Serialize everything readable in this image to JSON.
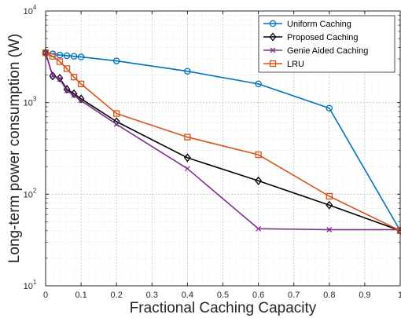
{
  "chart_data": {
    "type": "line",
    "title": "",
    "xlabel": "Fractional Caching Capacity",
    "ylabel": "Long-term power consumption (W)",
    "xlim": [
      0,
      1
    ],
    "ylim": [
      10,
      10000
    ],
    "yscale": "log",
    "grid": true,
    "legend_position": "top-right",
    "xticks": [
      0,
      0.1,
      0.2,
      0.3,
      0.4,
      0.5,
      0.6,
      0.7,
      0.8,
      0.9,
      1
    ],
    "xtick_labels": [
      "0",
      "0.1",
      "0.2",
      "0.3",
      "0.4",
      "0.5",
      "0.6",
      "0.7",
      "0.8",
      "0.9",
      "1"
    ],
    "yticks": [
      10,
      100,
      1000,
      10000
    ],
    "ytick_labels": [
      {
        "base": "10",
        "exp": "1"
      },
      {
        "base": "10",
        "exp": "2"
      },
      {
        "base": "10",
        "exp": "3"
      },
      {
        "base": "10",
        "exp": "4"
      }
    ],
    "series": [
      {
        "name": "Uniform Caching",
        "color": "#0072BD",
        "marker": "circle",
        "x": [
          0,
          0.02,
          0.04,
          0.06,
          0.08,
          0.1,
          0.2,
          0.4,
          0.6,
          0.8,
          1
        ],
        "y": [
          3500,
          3400,
          3300,
          3250,
          3200,
          3150,
          2850,
          2200,
          1600,
          870,
          40
        ]
      },
      {
        "name": "Proposed Caching",
        "color": "#000000",
        "marker": "diamond",
        "x": [
          0,
          0.02,
          0.04,
          0.06,
          0.08,
          0.1,
          0.2,
          0.4,
          0.6,
          0.8,
          1
        ],
        "y": [
          3500,
          1950,
          1850,
          1400,
          1250,
          1100,
          620,
          250,
          140,
          76,
          40
        ]
      },
      {
        "name": "Genie Aided Caching",
        "color": "#7E2F8E",
        "marker": "x",
        "x": [
          0,
          0.02,
          0.04,
          0.06,
          0.08,
          0.1,
          0.2,
          0.4,
          0.6,
          0.8,
          1
        ],
        "y": [
          3500,
          1950,
          1800,
          1350,
          1200,
          1050,
          580,
          190,
          42,
          41,
          41
        ]
      },
      {
        "name": "LRU",
        "color": "#D95319",
        "marker": "square",
        "x": [
          0,
          0.02,
          0.04,
          0.06,
          0.08,
          0.1,
          0.2,
          0.4,
          0.6,
          0.8,
          1
        ],
        "y": [
          3500,
          3200,
          2800,
          2350,
          1900,
          1600,
          760,
          420,
          270,
          95,
          40
        ]
      }
    ]
  }
}
